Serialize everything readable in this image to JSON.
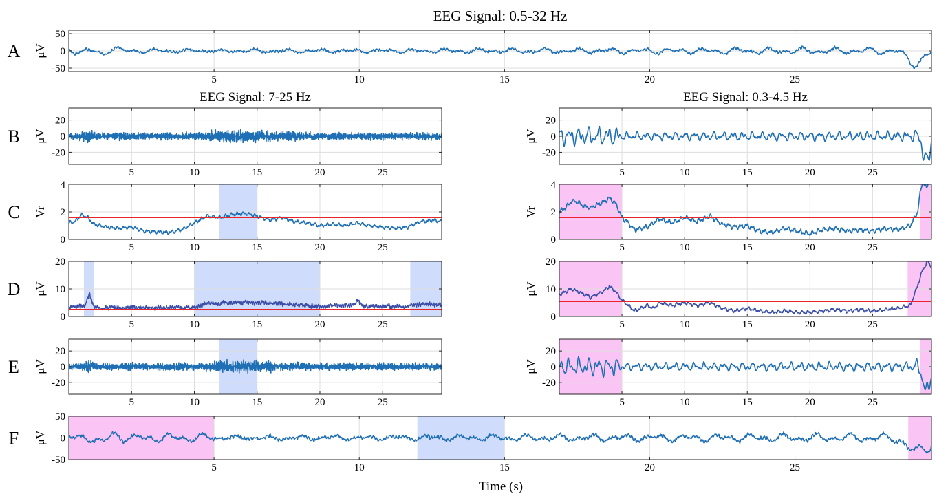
{
  "figure": {
    "xlabel": "Time (s)",
    "colors": {
      "signal": "#1f6fb4",
      "envelope": "#3b4fa8",
      "threshold": "#e8242b",
      "spindle_highlight": "#cfdcfb",
      "slow_wave_highlight": "#fac4f4",
      "grid": "#dedede",
      "frame": "#262626"
    }
  },
  "chart_data": [
    {
      "id": "A",
      "panel_label": "A",
      "type": "line",
      "title": "EEG Signal: 0.5-32 Hz",
      "ylabel": "μV",
      "xlim": [
        0,
        29.7
      ],
      "ylim": [
        -60,
        60
      ],
      "yticks": [
        -50,
        0,
        50
      ],
      "xticks": [
        5,
        10,
        15,
        20,
        25
      ],
      "grid": true,
      "series": [
        {
          "kind": "signal",
          "amplitude": 5,
          "slow_amp": [
            [
              0,
              8
            ],
            [
              5,
              4
            ],
            [
              28.5,
              10
            ],
            [
              29.7,
              20
            ]
          ],
          "fast_amp": [
            [
              0,
              3
            ],
            [
              29.7,
              3
            ]
          ],
          "events": [
            [
              1.2,
              -12
            ],
            [
              1.5,
              10
            ],
            [
              28.9,
              -18
            ],
            [
              29.2,
              -26
            ],
            [
              29.5,
              -12
            ]
          ],
          "seed": 1
        }
      ],
      "thresholds": [],
      "highlights": []
    },
    {
      "id": "B1",
      "panel_label": "B",
      "type": "line",
      "title": "EEG Signal: 7-25 Hz",
      "ylabel": "μV",
      "xlim": [
        0,
        29.7
      ],
      "ylim": [
        -35,
        35
      ],
      "yticks": [
        -20,
        0,
        20
      ],
      "xticks": [
        5,
        10,
        15,
        20,
        25
      ],
      "grid": true,
      "series": [
        {
          "kind": "spindle",
          "amplitude": 3,
          "amp_profile": [
            [
              0,
              2
            ],
            [
              1.3,
              4
            ],
            [
              1.6,
              7
            ],
            [
              2,
              3
            ],
            [
              10,
              3
            ],
            [
              12,
              5
            ],
            [
              15,
              5
            ],
            [
              20,
              3
            ],
            [
              29.7,
              3
            ]
          ],
          "seed": 2
        }
      ],
      "thresholds": [],
      "highlights": []
    },
    {
      "id": "B2",
      "panel_label": "",
      "type": "line",
      "title": "EEG Signal: 0.3-4.5 Hz",
      "ylabel": "μV",
      "xlim": [
        0,
        29.7
      ],
      "ylim": [
        -35,
        35
      ],
      "yticks": [
        -20,
        0,
        20
      ],
      "xticks": [
        5,
        10,
        15,
        20,
        25
      ],
      "grid": true,
      "series": [
        {
          "kind": "slow",
          "amplitude": 4,
          "amp_profile": [
            [
              0,
              9
            ],
            [
              4.5,
              10
            ],
            [
              5,
              4
            ],
            [
              28,
              5
            ],
            [
              28.6,
              8
            ],
            [
              29.7,
              10
            ]
          ],
          "events": [
            [
              29.1,
              -22
            ],
            [
              29.4,
              -26
            ],
            [
              29.7,
              -2
            ]
          ],
          "seed": 3
        }
      ],
      "thresholds": [],
      "highlights": []
    },
    {
      "id": "C1",
      "panel_label": "C",
      "type": "line",
      "title": "",
      "ylabel": "Vr",
      "xlim": [
        0,
        29.7
      ],
      "ylim": [
        0,
        4
      ],
      "yticks": [
        0,
        2,
        4
      ],
      "xticks": [
        5,
        10,
        15,
        20,
        25
      ],
      "grid": true,
      "series": [
        {
          "kind": "smooth",
          "points": [
            [
              0,
              1.2
            ],
            [
              0.5,
              1.3
            ],
            [
              1,
              1.8
            ],
            [
              1.5,
              1.6
            ],
            [
              2,
              1.1
            ],
            [
              3,
              0.9
            ],
            [
              4,
              0.8
            ],
            [
              5,
              0.9
            ],
            [
              6,
              0.6
            ],
            [
              7,
              0.55
            ],
            [
              8,
              0.5
            ],
            [
              9,
              0.7
            ],
            [
              10,
              1.2
            ],
            [
              11,
              1.7
            ],
            [
              12,
              1.6
            ],
            [
              13,
              1.8
            ],
            [
              14,
              1.9
            ],
            [
              15,
              1.7
            ],
            [
              16,
              1.4
            ],
            [
              17,
              1.6
            ],
            [
              18,
              1.3
            ],
            [
              19,
              1.2
            ],
            [
              20,
              1.0
            ],
            [
              21,
              1.1
            ],
            [
              22,
              1.0
            ],
            [
              23,
              1.2
            ],
            [
              24,
              1.0
            ],
            [
              25,
              0.9
            ],
            [
              26,
              0.8
            ],
            [
              27,
              0.9
            ],
            [
              28,
              1.3
            ],
            [
              29,
              1.4
            ],
            [
              29.7,
              1.3
            ]
          ],
          "noise": 0.08,
          "seed": 4
        }
      ],
      "thresholds": [
        1.6
      ],
      "highlights": [
        {
          "x0": 12,
          "x1": 15,
          "kind": "spindle"
        }
      ]
    },
    {
      "id": "C2",
      "panel_label": "",
      "type": "line",
      "title": "",
      "ylabel": "Vr",
      "xlim": [
        0,
        29.7
      ],
      "ylim": [
        0,
        4
      ],
      "yticks": [
        0,
        2,
        4
      ],
      "xticks": [
        5,
        10,
        15,
        20,
        25
      ],
      "grid": true,
      "series": [
        {
          "kind": "smooth",
          "points": [
            [
              0,
              2.0
            ],
            [
              0.5,
              2.3
            ],
            [
              1,
              2.8
            ],
            [
              1.5,
              2.7
            ],
            [
              2,
              2.4
            ],
            [
              2.5,
              2.3
            ],
            [
              3,
              2.5
            ],
            [
              3.5,
              2.7
            ],
            [
              4,
              3.0
            ],
            [
              4.5,
              2.6
            ],
            [
              5,
              1.6
            ],
            [
              5.5,
              1.2
            ],
            [
              6,
              0.7
            ],
            [
              7,
              0.9
            ],
            [
              8,
              1.5
            ],
            [
              9,
              1.2
            ],
            [
              10,
              1.6
            ],
            [
              11,
              1.3
            ],
            [
              12,
              1.7
            ],
            [
              13,
              1.1
            ],
            [
              14,
              0.9
            ],
            [
              15,
              1.0
            ],
            [
              16,
              0.6
            ],
            [
              17,
              0.5
            ],
            [
              18,
              0.8
            ],
            [
              19,
              0.6
            ],
            [
              20,
              0.4
            ],
            [
              21,
              0.7
            ],
            [
              22,
              0.8
            ],
            [
              23,
              0.6
            ],
            [
              24,
              0.7
            ],
            [
              25,
              0.6
            ],
            [
              26,
              0.8
            ],
            [
              27,
              0.7
            ],
            [
              28,
              1.0
            ],
            [
              28.6,
              2.0
            ],
            [
              28.8,
              3.4
            ],
            [
              29,
              4.2
            ],
            [
              29.3,
              3.7
            ],
            [
              29.5,
              4.3
            ],
            [
              29.7,
              4.1
            ]
          ],
          "noise": 0.1,
          "seed": 5
        }
      ],
      "thresholds": [
        1.6
      ],
      "highlights": [
        {
          "x0": 0,
          "x1": 5,
          "kind": "slow_wave"
        },
        {
          "x0": 28.8,
          "x1": 29.7,
          "kind": "slow_wave"
        }
      ]
    },
    {
      "id": "D1",
      "panel_label": "D",
      "type": "line",
      "title": "",
      "ylabel": "μV",
      "xlim": [
        0,
        29.7
      ],
      "ylim": [
        0,
        20
      ],
      "yticks": [
        0,
        10,
        20
      ],
      "xticks": [
        5,
        10,
        15,
        20,
        25
      ],
      "grid": true,
      "series": [
        {
          "kind": "envelope",
          "base": [
            [
              0,
              2
            ],
            [
              1.3,
              3
            ],
            [
              1.6,
              7
            ],
            [
              2,
              2
            ],
            [
              10,
              2
            ],
            [
              11,
              3.5
            ],
            [
              15,
              4
            ],
            [
              20,
              2.5
            ],
            [
              22.7,
              3
            ],
            [
              23,
              5
            ],
            [
              23.3,
              2.5
            ],
            [
              27,
              2.5
            ],
            [
              28,
              3.5
            ],
            [
              29.7,
              3
            ]
          ],
          "noise": 1.6,
          "seed": 6
        }
      ],
      "thresholds": [
        2.5
      ],
      "highlights": [
        {
          "x0": 1.2,
          "x1": 2,
          "kind": "spindle"
        },
        {
          "x0": 10,
          "x1": 20,
          "kind": "spindle"
        },
        {
          "x0": 27.2,
          "x1": 29.7,
          "kind": "spindle"
        }
      ]
    },
    {
      "id": "D2",
      "panel_label": "",
      "type": "line",
      "title": "",
      "ylabel": "μV",
      "xlim": [
        0,
        29.7
      ],
      "ylim": [
        0,
        20
      ],
      "yticks": [
        0,
        10,
        20
      ],
      "xticks": [
        5,
        10,
        15,
        20,
        25
      ],
      "grid": true,
      "series": [
        {
          "kind": "smooth",
          "points": [
            [
              0,
              8
            ],
            [
              0.5,
              9
            ],
            [
              1,
              10
            ],
            [
              1.5,
              9
            ],
            [
              2,
              8
            ],
            [
              2.5,
              7
            ],
            [
              3,
              8
            ],
            [
              3.5,
              9
            ],
            [
              4,
              11
            ],
            [
              4.5,
              9
            ],
            [
              5,
              6
            ],
            [
              5.5,
              4
            ],
            [
              6,
              2
            ],
            [
              6.5,
              3
            ],
            [
              7,
              4
            ],
            [
              7.5,
              3
            ],
            [
              8,
              5
            ],
            [
              9,
              4
            ],
            [
              10,
              5
            ],
            [
              11,
              4
            ],
            [
              12,
              5
            ],
            [
              13,
              3
            ],
            [
              14,
              2
            ],
            [
              15,
              3
            ],
            [
              16,
              2
            ],
            [
              17,
              1.5
            ],
            [
              18,
              2
            ],
            [
              19,
              1.5
            ],
            [
              20,
              1.5
            ],
            [
              21,
              2
            ],
            [
              22,
              2.5
            ],
            [
              23,
              2
            ],
            [
              24,
              2.5
            ],
            [
              25,
              2
            ],
            [
              26,
              2.5
            ],
            [
              27,
              3
            ],
            [
              28,
              4
            ],
            [
              28.5,
              10
            ],
            [
              29,
              17
            ],
            [
              29.4,
              20
            ],
            [
              29.7,
              18
            ]
          ],
          "noise": 0.4,
          "seed": 7
        }
      ],
      "thresholds": [
        5.5
      ],
      "highlights": [
        {
          "x0": 0,
          "x1": 5,
          "kind": "slow_wave"
        },
        {
          "x0": 27.8,
          "x1": 29.7,
          "kind": "slow_wave"
        }
      ]
    },
    {
      "id": "E1",
      "panel_label": "E",
      "type": "line",
      "title": "",
      "ylabel": "μV",
      "xlim": [
        0,
        29.7
      ],
      "ylim": [
        -35,
        35
      ],
      "yticks": [
        -20,
        0,
        20
      ],
      "xticks": [
        5,
        10,
        15,
        20,
        25
      ],
      "grid": true,
      "series": [
        {
          "kind": "spindle",
          "amplitude": 3,
          "amp_profile": [
            [
              0,
              2
            ],
            [
              1.3,
              4
            ],
            [
              1.6,
              7
            ],
            [
              2,
              3
            ],
            [
              10,
              3
            ],
            [
              12,
              5
            ],
            [
              15,
              5
            ],
            [
              20,
              3
            ],
            [
              29.7,
              3
            ]
          ],
          "seed": 8
        }
      ],
      "thresholds": [],
      "highlights": [
        {
          "x0": 12,
          "x1": 15,
          "kind": "spindle"
        }
      ]
    },
    {
      "id": "E2",
      "panel_label": "",
      "type": "line",
      "title": "",
      "ylabel": "μV",
      "xlim": [
        0,
        29.7
      ],
      "ylim": [
        -35,
        35
      ],
      "yticks": [
        -20,
        0,
        20
      ],
      "xticks": [
        5,
        10,
        15,
        20,
        25
      ],
      "grid": true,
      "series": [
        {
          "kind": "slow",
          "amplitude": 4,
          "amp_profile": [
            [
              0,
              9
            ],
            [
              4.5,
              10
            ],
            [
              5,
              4
            ],
            [
              28,
              5
            ],
            [
              28.6,
              8
            ],
            [
              29.7,
              10
            ]
          ],
          "events": [
            [
              29.1,
              -22
            ],
            [
              29.4,
              -26
            ],
            [
              29.7,
              -2
            ]
          ],
          "seed": 9
        }
      ],
      "thresholds": [],
      "highlights": [
        {
          "x0": 0,
          "x1": 5,
          "kind": "slow_wave"
        },
        {
          "x0": 28.8,
          "x1": 29.7,
          "kind": "slow_wave"
        }
      ]
    },
    {
      "id": "F",
      "panel_label": "F",
      "type": "line",
      "title": "",
      "ylabel": "μV",
      "xlim": [
        0,
        29.7
      ],
      "ylim": [
        -50,
        50
      ],
      "yticks": [
        -50,
        0,
        50
      ],
      "xticks": [
        5,
        10,
        15,
        20,
        25
      ],
      "grid": true,
      "series": [
        {
          "kind": "signal",
          "amplitude": 5,
          "slow_amp": [
            [
              0,
              9
            ],
            [
              5,
              9
            ],
            [
              5.2,
              4
            ],
            [
              28.5,
              10
            ],
            [
              29.7,
              20
            ]
          ],
          "fast_amp": [
            [
              0,
              3
            ],
            [
              29.7,
              3
            ]
          ],
          "events": [
            [
              1.2,
              -12
            ],
            [
              1.5,
              10
            ],
            [
              28.9,
              -18
            ],
            [
              29.2,
              -26
            ],
            [
              29.5,
              -12
            ]
          ],
          "seed": 10
        }
      ],
      "thresholds": [],
      "highlights": [
        {
          "x0": 0,
          "x1": 5,
          "kind": "slow_wave"
        },
        {
          "x0": 12,
          "x1": 15,
          "kind": "spindle"
        },
        {
          "x0": 28.9,
          "x1": 29.7,
          "kind": "slow_wave"
        }
      ]
    }
  ]
}
